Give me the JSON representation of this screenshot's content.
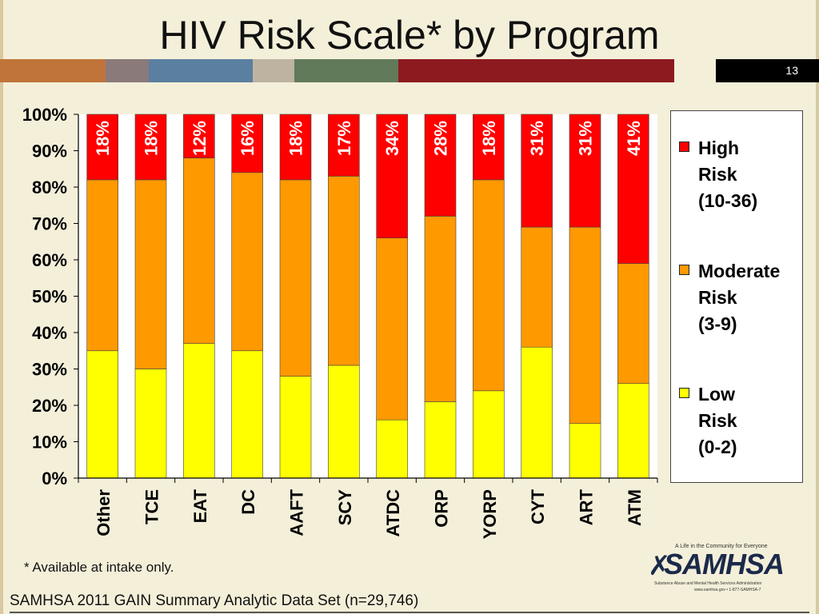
{
  "slide": {
    "title": "HIV Risk Scale* by Program",
    "slide_number": "13",
    "footnote": "* Available at intake only.",
    "source": "SAMHSA 2011 GAIN Summary Analytic Data Set (n=29,746)",
    "band_colors": [
      "#c0743a",
      "#8a7a7a",
      "#5b7fa0",
      "#bdb3a0",
      "#617a5a",
      "#8c1a1f",
      "#f4efd9"
    ],
    "logo": {
      "tagline": "A Life in the Community for Everyone",
      "wordmark": "SAMHSA",
      "subtitle": "Substance Abuse and Mental Health Services Administration",
      "url": "www.samhsa.gov • 1-877-SAMHSA-7"
    }
  },
  "colors": {
    "high": "#ff0000",
    "moderate": "#ff9900",
    "low": "#ffff00"
  },
  "chart_data": {
    "type": "bar",
    "stacked": true,
    "title": "",
    "xlabel": "",
    "ylabel": "",
    "ylim": [
      0,
      100
    ],
    "y_ticks": [
      "0%",
      "10%",
      "20%",
      "30%",
      "40%",
      "50%",
      "60%",
      "70%",
      "80%",
      "90%",
      "100%"
    ],
    "grid": false,
    "legend_position": "right",
    "categories": [
      "Other",
      "TCE",
      "EAT",
      "DC",
      "AAFT",
      "SCY",
      "ATDC",
      "ORP",
      "YORP",
      "CYT",
      "ART",
      "ATM"
    ],
    "series": [
      {
        "name": "Low Risk (0-2)",
        "key": "low",
        "values": [
          35,
          30,
          37,
          35,
          28,
          31,
          16,
          21,
          24,
          36,
          15,
          26
        ]
      },
      {
        "name": "Moderate Risk (3-9)",
        "key": "moderate",
        "values": [
          47,
          52,
          51,
          49,
          54,
          52,
          50,
          51,
          58,
          33,
          54,
          33
        ]
      },
      {
        "name": "High Risk (10-36)",
        "key": "high",
        "values": [
          18,
          18,
          12,
          16,
          18,
          17,
          34,
          28,
          18,
          31,
          31,
          41
        ]
      }
    ],
    "data_labels": [
      "18%",
      "18%",
      "12%",
      "16%",
      "18%",
      "17%",
      "34%",
      "28%",
      "18%",
      "31%",
      "31%",
      "41%"
    ],
    "legend": [
      {
        "key": "high",
        "lines": [
          "High",
          "Risk",
          "(10-36)"
        ]
      },
      {
        "key": "moderate",
        "lines": [
          "Moderate",
          "Risk",
          "(3-9)"
        ]
      },
      {
        "key": "low",
        "lines": [
          "Low",
          "Risk",
          "(0-2)"
        ]
      }
    ]
  }
}
